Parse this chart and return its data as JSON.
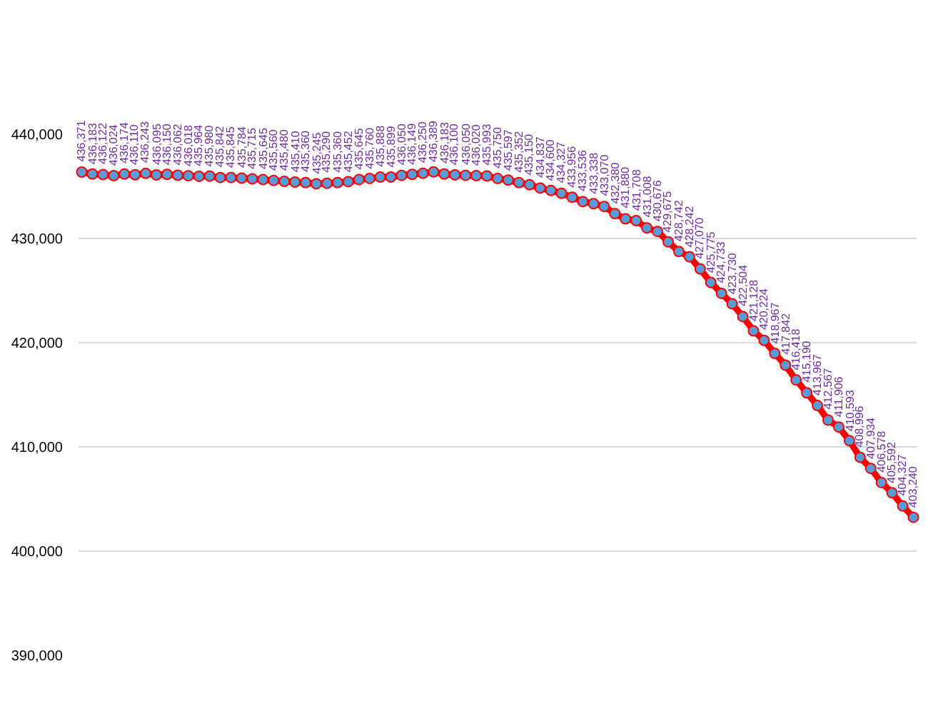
{
  "chart_data": {
    "type": "line",
    "categories": [
      null,
      null,
      null,
      null,
      null,
      null,
      null,
      null,
      null,
      null,
      null,
      null,
      null,
      null,
      null,
      null,
      null,
      null,
      null,
      null,
      null,
      null,
      null,
      null,
      null,
      null,
      null,
      null,
      null,
      null,
      null,
      null,
      null,
      null,
      null,
      null,
      null,
      null,
      null,
      null,
      null,
      null,
      null,
      null,
      null,
      null,
      null,
      null,
      null,
      null,
      null,
      null,
      null,
      null,
      null,
      null,
      null,
      null,
      null,
      null,
      null,
      null,
      null,
      null,
      null,
      null,
      null,
      null,
      null,
      null,
      null,
      null,
      null,
      null,
      null,
      null,
      null,
      null,
      null
    ],
    "values": [
      436371,
      436183,
      436122,
      436024,
      436174,
      436110,
      436243,
      436095,
      436150,
      436062,
      436018,
      435964,
      435980,
      435842,
      435845,
      435784,
      435715,
      435645,
      435560,
      435480,
      435410,
      435360,
      435245,
      435290,
      435360,
      435452,
      435645,
      435760,
      435888,
      435899,
      436050,
      436149,
      436250,
      436389,
      436183,
      436100,
      436050,
      436020,
      435993,
      435750,
      435597,
      435352,
      435150,
      434837,
      434600,
      434327,
      433956,
      433536,
      433338,
      433070,
      432380,
      431880,
      431708,
      431008,
      430676,
      429675,
      428742,
      428242,
      427070,
      425775,
      424733,
      423730,
      422504,
      421128,
      420224,
      418967,
      417842,
      416418,
      415190,
      413967,
      412567,
      411906,
      410593,
      408996,
      407934,
      406578,
      405592,
      404327,
      403240
    ],
    "value_labels": [
      "436,371",
      "436,183",
      "436,122",
      "436,024",
      "436,174",
      "436,110",
      "436,243",
      "436,095",
      "436,150",
      "436,062",
      "436,018",
      "435,964",
      "435,980",
      "435,842",
      "435,845",
      "435,784",
      "435,715",
      "435,645",
      "435,560",
      "435,480",
      "435,410",
      "435,360",
      "435,245",
      "435,290",
      "435,360",
      "435,452",
      "435,645",
      "435,760",
      "435,888",
      "435,899",
      "436,050",
      "436,149",
      "436,250",
      "436,389",
      "436,183",
      "436,100",
      "436,050",
      "436,020",
      "435,993",
      "435,750",
      "435,597",
      "435,352",
      "435,150",
      "434,837",
      "434,600",
      "434,327",
      "433,956",
      "433,536",
      "433,338",
      "433,070",
      "432,380",
      "431,880",
      "431,708",
      "431,008",
      "430,676",
      "429,675",
      "428,742",
      "428,242",
      "427,070",
      "425,775",
      "424,733",
      "423,730",
      "422,504",
      "421,128",
      "420,224",
      "418,967",
      "417,842",
      "416,418",
      "415,190",
      "413,967",
      "412,567",
      "411,906",
      "410,593",
      "408,996",
      "407,934",
      "406,578",
      "405,592",
      "404,327",
      "403,240"
    ],
    "color": "#ff0000",
    "marker": "circle",
    "grid": "y",
    "tick_labels": "y",
    "ylim": [
      390000,
      440000
    ],
    "yticks": [
      {
        "value": 390000,
        "label": "390,000"
      },
      {
        "value": 400000,
        "label": "400,000"
      },
      {
        "value": 410000,
        "label": "410,000"
      },
      {
        "value": 420000,
        "label": "420,000"
      },
      {
        "value": 430000,
        "label": "430,000"
      },
      {
        "value": 440000,
        "label": "440,000"
      }
    ]
  }
}
